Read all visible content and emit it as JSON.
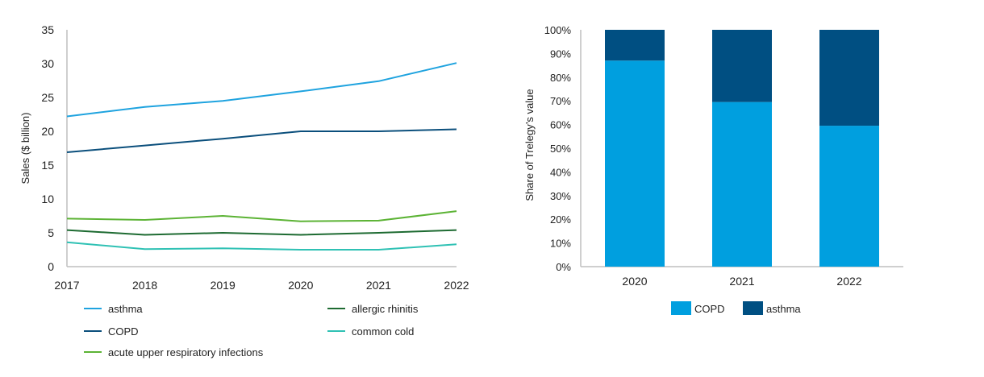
{
  "chart_data": [
    {
      "type": "line",
      "title": "",
      "xlabel": "",
      "ylabel": "Sales ($ billion)",
      "x": [
        "2017",
        "2018",
        "2019",
        "2020",
        "2021",
        "2022"
      ],
      "ylim": [
        0,
        35
      ],
      "yticks": [
        0,
        5,
        10,
        15,
        20,
        25,
        30,
        35
      ],
      "grid": false,
      "legend_position": "bottom",
      "series": [
        {
          "name": "asthma",
          "color": "#1fa3df",
          "values": [
            22.2,
            23.6,
            24.5,
            25.9,
            27.4,
            30.1
          ]
        },
        {
          "name": "allergic rhinitis",
          "color": "#1e6b32",
          "values": [
            5.4,
            4.7,
            5.0,
            4.7,
            5.0,
            5.4
          ]
        },
        {
          "name": "COPD",
          "color": "#0b4f7c",
          "values": [
            16.9,
            17.9,
            18.9,
            20.0,
            20.0,
            20.3
          ]
        },
        {
          "name": "common cold",
          "color": "#2fc1b4",
          "values": [
            3.6,
            2.6,
            2.7,
            2.5,
            2.5,
            3.3
          ]
        },
        {
          "name": "acute upper respiratory infections",
          "color": "#5cb335",
          "values": [
            7.1,
            6.9,
            7.5,
            6.7,
            6.8,
            8.2
          ]
        }
      ]
    },
    {
      "type": "bar",
      "stacked": true,
      "title": "",
      "xlabel": "",
      "ylabel": "Share of Trelegy’s value",
      "categories": [
        "2020",
        "2021",
        "2022"
      ],
      "ylim": [
        0,
        100
      ],
      "yticks": [
        "0%",
        "10%",
        "20%",
        "30%",
        "40%",
        "50%",
        "60%",
        "70%",
        "80%",
        "90%",
        "100%"
      ],
      "grid": false,
      "legend_position": "bottom",
      "series": [
        {
          "name": "COPD",
          "color": "#009fdf",
          "values": [
            87,
            69.5,
            59.5
          ]
        },
        {
          "name": "asthma",
          "color": "#004f82",
          "values": [
            13,
            30.5,
            40.5
          ]
        }
      ]
    }
  ]
}
